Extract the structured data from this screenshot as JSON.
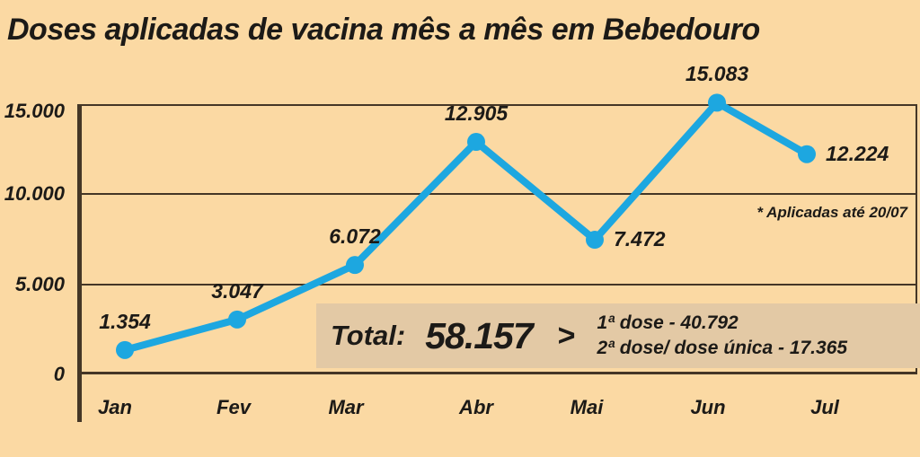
{
  "title": "Doses aplicadas de vacina mês a mês em Bebedouro",
  "annotation": "* Aplicadas até 20/07",
  "colors": {
    "background": "#fbd9a3",
    "text": "#1c1a17",
    "axis": "#443626",
    "line": "#1da7e0",
    "total_box": "#e3c9a5"
  },
  "total": {
    "label": "Total:",
    "value": "58.157",
    "separator": ">",
    "breakdown": [
      "1ª dose - 40.792",
      "2ª dose/ dose única - 17.365"
    ]
  },
  "chart_data": {
    "type": "line",
    "title": "Doses aplicadas de vacina mês a mês em Bebedouro",
    "categories": [
      "Jan",
      "Fev",
      "Mar",
      "Abr",
      "Mai",
      "Jun",
      "Jul"
    ],
    "values": [
      1354,
      3047,
      6072,
      12905,
      7472,
      15083,
      12224
    ],
    "point_labels": [
      "1.354",
      "3.047",
      "6.072",
      "12.905",
      "7.472",
      "15.083",
      "12.224"
    ],
    "label_placement": [
      "above",
      "above",
      "above",
      "above",
      "right",
      "above",
      "right"
    ],
    "xlabel": "",
    "ylabel": "",
    "ylim": [
      0,
      15000
    ],
    "yticks": [
      {
        "value": 0,
        "label": "0"
      },
      {
        "value": 5000,
        "label": "5.000"
      },
      {
        "value": 10000,
        "label": "10.000"
      },
      {
        "value": 15000,
        "label": "15.000"
      }
    ],
    "grid": true,
    "legend": false,
    "line_color": "#1da7e0",
    "marker": "circle",
    "annotation": "* Aplicadas até 20/07",
    "total": 58157,
    "first_dose": 40792,
    "second_or_single_dose": 17365
  }
}
